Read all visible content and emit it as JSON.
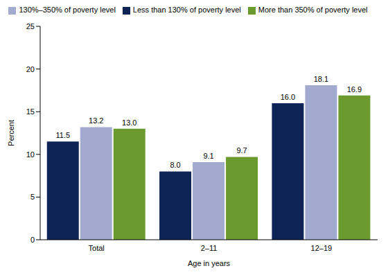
{
  "chart_data": {
    "type": "bar",
    "xlabel": "Age in years",
    "ylabel": "Percent",
    "categories": [
      "Total",
      "2–11",
      "12–19"
    ],
    "series": [
      {
        "name": "Less than 130% of poverty level",
        "color": "#0e2356",
        "values": [
          11.5,
          8.0,
          16.0
        ],
        "value_labels": [
          "11.5",
          "8.0",
          "16.0"
        ]
      },
      {
        "name": "130%–350% of poverty level",
        "color": "#a2abcf",
        "values": [
          13.2,
          9.1,
          18.1
        ],
        "value_labels": [
          "13.2",
          "9.1",
          "18.1"
        ]
      },
      {
        "name": "More than 350% of poverty level",
        "color": "#6b9a2f",
        "values": [
          13.0,
          9.7,
          16.9
        ],
        "value_labels": [
          "13.0",
          "9.7",
          "16.9"
        ]
      }
    ],
    "ylim": [
      0,
      25
    ],
    "yticks": [
      0,
      5,
      10,
      15,
      20,
      25
    ],
    "grid": false,
    "legend": "top",
    "data_labels": true
  }
}
